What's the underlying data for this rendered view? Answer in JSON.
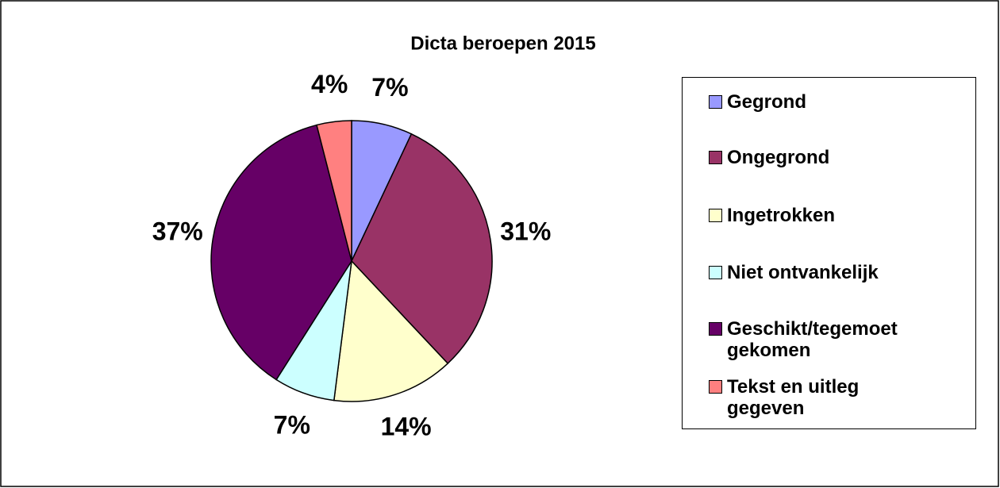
{
  "chart_data": {
    "type": "pie",
    "title": "Dicta beroepen 2015",
    "categories": [
      "Gegrond",
      "Ongegrond",
      "Ingetrokken",
      "Niet ontvankelijk",
      "Geschikt/tegemoet gekomen",
      "Tekst en uitleg gegeven"
    ],
    "values": [
      7,
      31,
      14,
      7,
      37,
      4
    ],
    "value_labels": [
      "7%",
      "31%",
      "14%",
      "7%",
      "37%",
      "4%"
    ],
    "colors": [
      "#9999ff",
      "#993366",
      "#ffffcc",
      "#ccffff",
      "#660066",
      "#ff8080"
    ],
    "legend": "right"
  }
}
